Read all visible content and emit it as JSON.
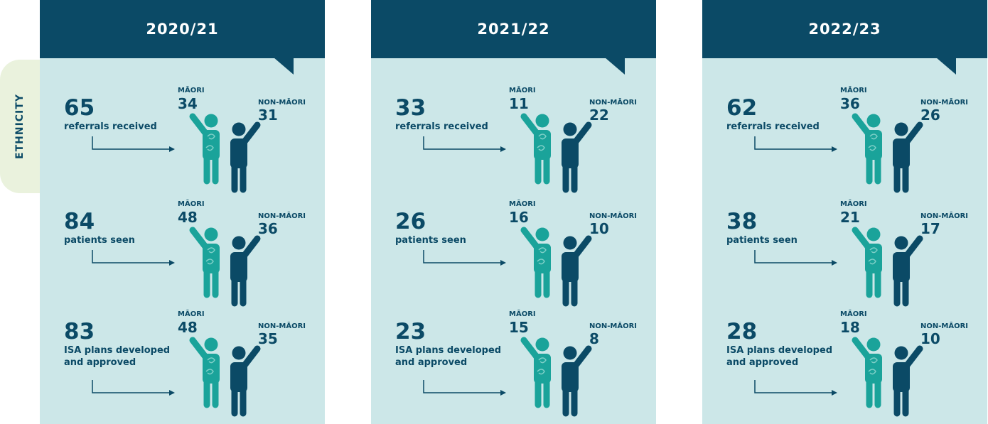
{
  "side_label": "ETHNICITY",
  "labels": {
    "maori": "MĀORI",
    "non_maori": "NON-MĀORI"
  },
  "panels": [
    {
      "year": "2020/21",
      "rows": [
        {
          "value": "65",
          "label": "referrals received",
          "maori": "34",
          "non_maori": "31"
        },
        {
          "value": "84",
          "label": "patients seen",
          "maori": "48",
          "non_maori": "36"
        },
        {
          "value": "83",
          "label": "ISA plans developed and approved",
          "maori": "48",
          "non_maori": "35"
        }
      ]
    },
    {
      "year": "2021/22",
      "rows": [
        {
          "value": "33",
          "label": "referrals received",
          "maori": "11",
          "non_maori": "22"
        },
        {
          "value": "26",
          "label": "patients seen",
          "maori": "16",
          "non_maori": "10"
        },
        {
          "value": "23",
          "label": "ISA plans developed and approved",
          "maori": "15",
          "non_maori": "8"
        }
      ]
    },
    {
      "year": "2022/23",
      "rows": [
        {
          "value": "62",
          "label": "referrals received",
          "maori": "36",
          "non_maori": "26"
        },
        {
          "value": "38",
          "label": "patients seen",
          "maori": "21",
          "non_maori": "17"
        },
        {
          "value": "28",
          "label": "ISA plans developed and approved",
          "maori": "18",
          "non_maori": "10"
        }
      ]
    }
  ]
}
